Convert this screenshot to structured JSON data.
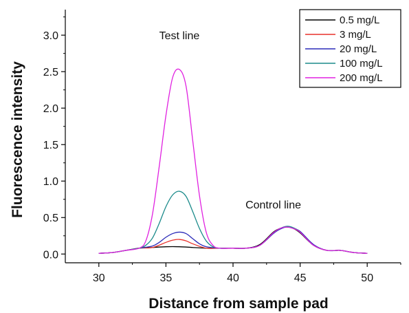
{
  "chart_data": {
    "type": "line",
    "xlabel": "Distance from sample pad",
    "ylabel": "Fluorescence intensity",
    "xlim": [
      27.5,
      52.5
    ],
    "ylim": [
      -0.12,
      3.35
    ],
    "x_ticks": [
      30,
      35,
      40,
      45,
      50
    ],
    "y_ticks": [
      0.0,
      0.5,
      1.0,
      1.5,
      2.0,
      2.5,
      3.0
    ],
    "x_tick_labels": [
      "30",
      "35",
      "40",
      "45",
      "50"
    ],
    "y_tick_labels": [
      "0.0",
      "0.5",
      "1.0",
      "1.5",
      "2.0",
      "2.5",
      "3.0"
    ],
    "legend_position": "top-right",
    "grid": false,
    "annotations": [
      {
        "text": "Test line",
        "x": 36.0,
        "y": 3.0
      },
      {
        "text": "Control line",
        "x": 43.0,
        "y": 0.68
      }
    ],
    "series": [
      {
        "name": "0.5 mg/L",
        "color": "#000000",
        "x": [
          30,
          31,
          32,
          33,
          34,
          35,
          36,
          37,
          38,
          39,
          40,
          41,
          42,
          43,
          43.5,
          44,
          44.5,
          45,
          46,
          47,
          48,
          49,
          50
        ],
        "y": [
          0.01,
          0.02,
          0.05,
          0.08,
          0.09,
          0.1,
          0.1,
          0.09,
          0.08,
          0.08,
          0.08,
          0.08,
          0.13,
          0.3,
          0.35,
          0.37,
          0.35,
          0.29,
          0.12,
          0.05,
          0.05,
          0.02,
          0.01
        ]
      },
      {
        "name": "3 mg/L",
        "color": "#e8302a",
        "x": [
          30,
          31,
          32,
          33,
          34,
          35,
          35.5,
          36,
          36.5,
          37,
          38,
          39,
          40,
          41,
          42,
          43,
          43.5,
          44,
          44.5,
          45,
          46,
          47,
          48,
          49,
          50
        ],
        "y": [
          0.01,
          0.02,
          0.05,
          0.08,
          0.09,
          0.16,
          0.19,
          0.2,
          0.18,
          0.14,
          0.08,
          0.08,
          0.08,
          0.08,
          0.12,
          0.29,
          0.35,
          0.37,
          0.35,
          0.3,
          0.12,
          0.05,
          0.05,
          0.02,
          0.01
        ]
      },
      {
        "name": "20 mg/L",
        "color": "#2a2ab8",
        "x": [
          30,
          31,
          32,
          33,
          34,
          34.5,
          35,
          35.5,
          36,
          36.5,
          37,
          37.5,
          38,
          39,
          40,
          41,
          42,
          43,
          43.5,
          44,
          44.5,
          45,
          46,
          47,
          48,
          49,
          50
        ],
        "y": [
          0.01,
          0.02,
          0.05,
          0.08,
          0.11,
          0.16,
          0.23,
          0.28,
          0.3,
          0.28,
          0.21,
          0.14,
          0.1,
          0.08,
          0.08,
          0.08,
          0.12,
          0.28,
          0.34,
          0.37,
          0.35,
          0.31,
          0.13,
          0.05,
          0.05,
          0.02,
          0.01
        ]
      },
      {
        "name": "100 mg/L",
        "color": "#1a8a8a",
        "x": [
          30,
          31,
          32,
          33,
          33.5,
          34,
          34.5,
          35,
          35.5,
          36,
          36.5,
          37,
          37.5,
          38,
          38.5,
          39,
          40,
          41,
          42,
          43,
          43.5,
          44,
          44.5,
          45,
          46,
          47,
          48,
          49,
          50
        ],
        "y": [
          0.01,
          0.02,
          0.05,
          0.08,
          0.12,
          0.22,
          0.42,
          0.65,
          0.81,
          0.86,
          0.79,
          0.58,
          0.35,
          0.18,
          0.1,
          0.08,
          0.08,
          0.08,
          0.12,
          0.29,
          0.35,
          0.38,
          0.36,
          0.3,
          0.12,
          0.05,
          0.05,
          0.02,
          0.01
        ]
      },
      {
        "name": "200 mg/L",
        "color": "#e020e0",
        "x": [
          30,
          31,
          32,
          33,
          33.5,
          34,
          34.5,
          35,
          35.5,
          36,
          36.5,
          37,
          37.5,
          38,
          38.5,
          39,
          40,
          41,
          42,
          43,
          43.5,
          44,
          44.5,
          45,
          46,
          47,
          48,
          49,
          50
        ],
        "y": [
          0.01,
          0.02,
          0.05,
          0.08,
          0.18,
          0.55,
          1.2,
          1.9,
          2.42,
          2.53,
          2.3,
          1.55,
          0.8,
          0.3,
          0.12,
          0.08,
          0.08,
          0.08,
          0.12,
          0.29,
          0.35,
          0.37,
          0.35,
          0.3,
          0.12,
          0.05,
          0.05,
          0.02,
          0.01
        ]
      }
    ]
  }
}
